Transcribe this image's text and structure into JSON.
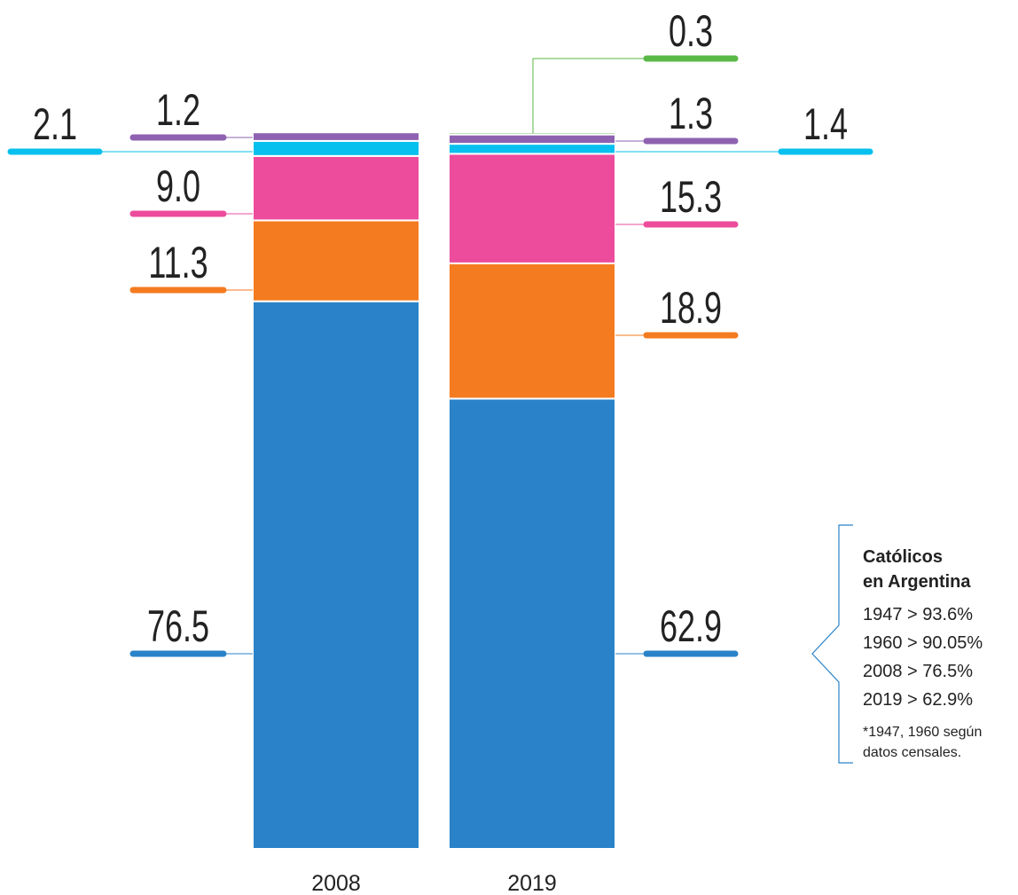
{
  "chart_data": {
    "type": "stacked-bar",
    "categories": [
      "2008",
      "2019"
    ],
    "series": [
      {
        "color": "#2a83c8",
        "values": [
          76.5,
          62.9
        ],
        "value_labels": [
          "76.5",
          "62.9"
        ]
      },
      {
        "color": "#f47b20",
        "values": [
          11.3,
          18.9
        ],
        "value_labels": [
          "11.3",
          "18.9"
        ]
      },
      {
        "color": "#ec4c9b",
        "values": [
          9.0,
          15.3
        ],
        "value_labels": [
          "9.0",
          "15.3"
        ]
      },
      {
        "color": "#08c0ee",
        "values": [
          2.1,
          1.4
        ],
        "value_labels": [
          "2.1",
          "1.4"
        ]
      },
      {
        "color": "#8e62b0",
        "values": [
          1.2,
          1.3
        ],
        "value_labels": [
          "1.2",
          "1.3"
        ]
      },
      {
        "color": "#5ab946",
        "values": [
          null,
          0.3
        ],
        "value_labels": [
          null,
          "0.3"
        ]
      }
    ],
    "annotation": {
      "title": [
        "Católicos",
        "en Argentina"
      ],
      "lines": [
        "1947 > 93.6%",
        "1960 > 90.05%",
        "2008 > 76.5%",
        "2019 > 62.9%"
      ],
      "note": [
        "*1947, 1960 según",
        "datos censales."
      ]
    }
  }
}
